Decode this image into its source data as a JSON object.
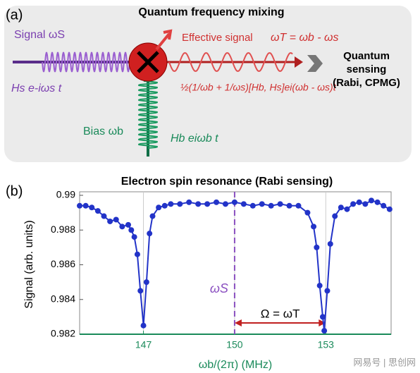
{
  "diagram": {
    "label": "(a)",
    "title": "Quantum frequency mixing",
    "signal_label": "Signal ωS",
    "signal_hamiltonian": "Hs e-iωs t",
    "bias_label": "Bias ωb",
    "bias_hamiltonian": "Hb eiωb t",
    "effective_label": "Effective signal",
    "effective_frequency": "ωT = ωb - ωs",
    "effective_formula": "½(1/ωb + 1/ωs)[Hb, Hs]ei(ωb - ωs)t",
    "output_lines": [
      "Quantum",
      "sensing",
      "(Rabi, CPMG)"
    ]
  },
  "chart_data": {
    "type": "line",
    "label": "(b)",
    "title": "Electron spin resonance (Rabi sensing)",
    "x_label": "ωb/(2π) (MHz)",
    "y_label": "Signal (arb. units)",
    "color": "#2233c8",
    "x": [
      144.9,
      145.1,
      145.3,
      145.5,
      145.7,
      145.9,
      146.1,
      146.3,
      146.5,
      146.6,
      146.7,
      146.8,
      146.9,
      147.0,
      147.1,
      147.2,
      147.3,
      147.5,
      147.7,
      147.9,
      148.2,
      148.5,
      148.8,
      149.1,
      149.4,
      149.7,
      150.0,
      150.3,
      150.6,
      150.9,
      151.2,
      151.5,
      151.8,
      152.1,
      152.4,
      152.6,
      152.7,
      152.8,
      152.9,
      152.95,
      153.05,
      153.15,
      153.3,
      153.5,
      153.7,
      153.9,
      154.1,
      154.3,
      154.5,
      154.7,
      154.9,
      155.1
    ],
    "values": [
      0.9894,
      0.9894,
      0.9893,
      0.9891,
      0.9888,
      0.9885,
      0.9886,
      0.9882,
      0.9883,
      0.988,
      0.9876,
      0.9866,
      0.9845,
      0.9825,
      0.985,
      0.9878,
      0.9888,
      0.9893,
      0.9894,
      0.9895,
      0.9895,
      0.9896,
      0.9895,
      0.9895,
      0.9896,
      0.9895,
      0.9896,
      0.9895,
      0.9894,
      0.9895,
      0.9894,
      0.9895,
      0.9894,
      0.9894,
      0.989,
      0.9882,
      0.987,
      0.9848,
      0.983,
      0.9822,
      0.9845,
      0.9872,
      0.9888,
      0.9893,
      0.9892,
      0.9895,
      0.9896,
      0.9895,
      0.9897,
      0.9896,
      0.9894,
      0.9892
    ],
    "xlim": [
      144.9,
      155.15
    ],
    "ylim": [
      0.982,
      0.99
    ],
    "xticks": [
      147,
      150,
      153
    ],
    "yticks": [
      0.982,
      0.984,
      0.986,
      0.988,
      0.99
    ],
    "grid": true,
    "annotations": [
      "ωS",
      "Ω = ωT"
    ]
  },
  "watermark": "网易号 | 思创网"
}
